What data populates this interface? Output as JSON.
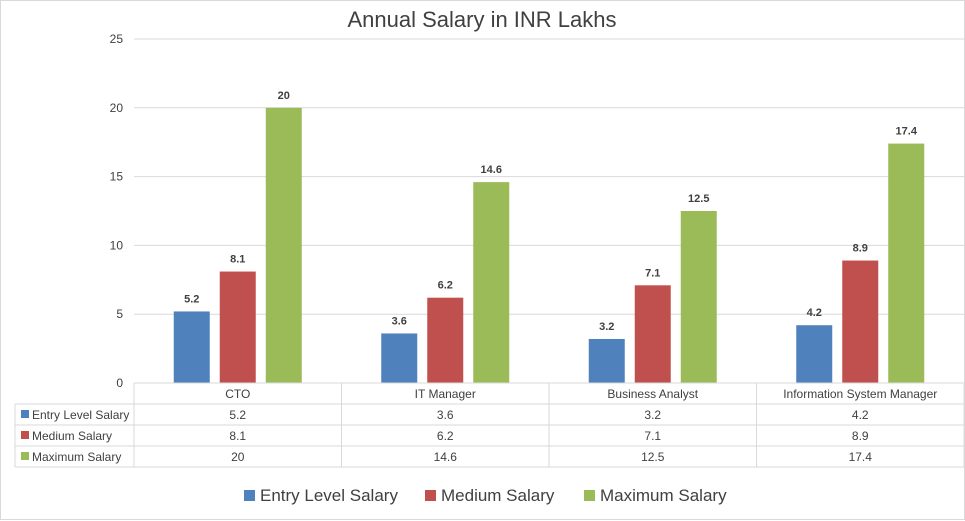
{
  "chart_data": {
    "type": "bar",
    "title": "Annual Salary in INR Lakhs",
    "categories": [
      "CTO",
      "IT Manager",
      "Business Analyst",
      "Information System Manager"
    ],
    "series": [
      {
        "name": "Entry Level Salary",
        "color": "#4f81bd",
        "values": [
          5.2,
          3.6,
          3.2,
          4.2
        ],
        "labels": [
          "5.2",
          "3.6",
          "3.2",
          "4.2"
        ]
      },
      {
        "name": "Medium Salary",
        "color": "#c0504d",
        "values": [
          8.1,
          6.2,
          7.1,
          8.9
        ],
        "labels": [
          "8.1",
          "6.2",
          "7.1",
          "8.9"
        ]
      },
      {
        "name": "Maximum Salary",
        "color": "#9bbb59",
        "values": [
          20,
          14.6,
          12.5,
          17.4
        ],
        "labels": [
          "20",
          "14.6",
          "12.5",
          "17.4"
        ]
      }
    ],
    "ylim": [
      0,
      25
    ],
    "yticks": [
      "0",
      "5",
      "10",
      "15",
      "20",
      "25"
    ],
    "ytick_values": [
      0,
      5,
      10,
      15,
      20,
      25
    ],
    "xlabel": "",
    "ylabel": "",
    "grid": true,
    "data_table": true,
    "legend_position": "bottom"
  }
}
